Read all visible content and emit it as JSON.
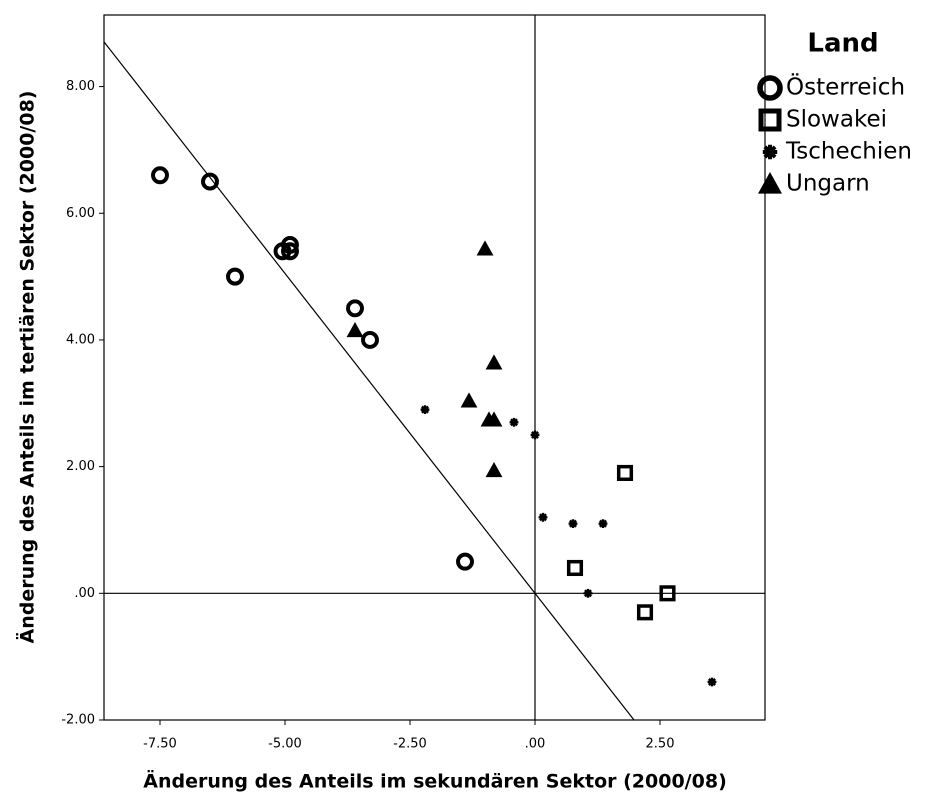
{
  "chart_data": {
    "type": "scatter",
    "xlabel": "Änderung des Anteils im sekundären Sektor (2000/08)",
    "ylabel": "Änderung des Anteils im tertiären Sektor (2000/08)",
    "legend_title": "Land",
    "legend": "right",
    "xlim": [
      -8.62,
      4.6
    ],
    "ylim": [
      -2.0,
      9.13
    ],
    "xticks": [
      {
        "value": -7.5,
        "label": "-7.50"
      },
      {
        "value": -5,
        "label": "-5.00"
      },
      {
        "value": -2.5,
        "label": "-2.50"
      },
      {
        "value": 0,
        "label": ".00"
      },
      {
        "value": 2.5,
        "label": "2.50"
      }
    ],
    "yticks": [
      {
        "value": -2,
        "label": "-2.00"
      },
      {
        "value": 0,
        "label": ".00"
      },
      {
        "value": 2,
        "label": "2.00"
      },
      {
        "value": 4,
        "label": "4.00"
      },
      {
        "value": 6,
        "label": "6.00"
      },
      {
        "value": 8,
        "label": "8.00"
      }
    ],
    "reference_lines": {
      "x": 0,
      "y": 0
    },
    "fit_line": {
      "slope": -1.01,
      "intercept": 0
    },
    "series": [
      {
        "name": "Österreich",
        "marker": "circle",
        "color": "#000000",
        "x": [
          -7.5,
          -6.5,
          -6.0,
          -5.05,
          -4.9,
          -4.9,
          -3.6,
          -3.3,
          -1.4
        ],
        "y": [
          6.6,
          6.5,
          5.0,
          5.4,
          5.5,
          5.4,
          4.5,
          4.0,
          0.5
        ]
      },
      {
        "name": "Slowakei",
        "marker": "square",
        "color": "#000000",
        "x": [
          1.8,
          0.8,
          2.2,
          2.65
        ],
        "y": [
          1.9,
          0.4,
          -0.3,
          0.0
        ]
      },
      {
        "name": "Tschechien",
        "marker": "star",
        "color": "#000000",
        "x": [
          -2.2,
          -0.42,
          0.0,
          0.16,
          0.76,
          1.36,
          1.06,
          3.54
        ],
        "y": [
          2.9,
          2.7,
          2.5,
          1.2,
          1.1,
          1.1,
          0.0,
          -1.4
        ]
      },
      {
        "name": "Ungarn",
        "marker": "triangle",
        "color": "#000000",
        "x": [
          -1.0,
          -3.6,
          -0.82,
          -1.32,
          -0.92,
          -0.82,
          -0.82
        ],
        "y": [
          5.44,
          4.15,
          3.64,
          3.04,
          2.74,
          2.74,
          1.94
        ]
      }
    ]
  }
}
